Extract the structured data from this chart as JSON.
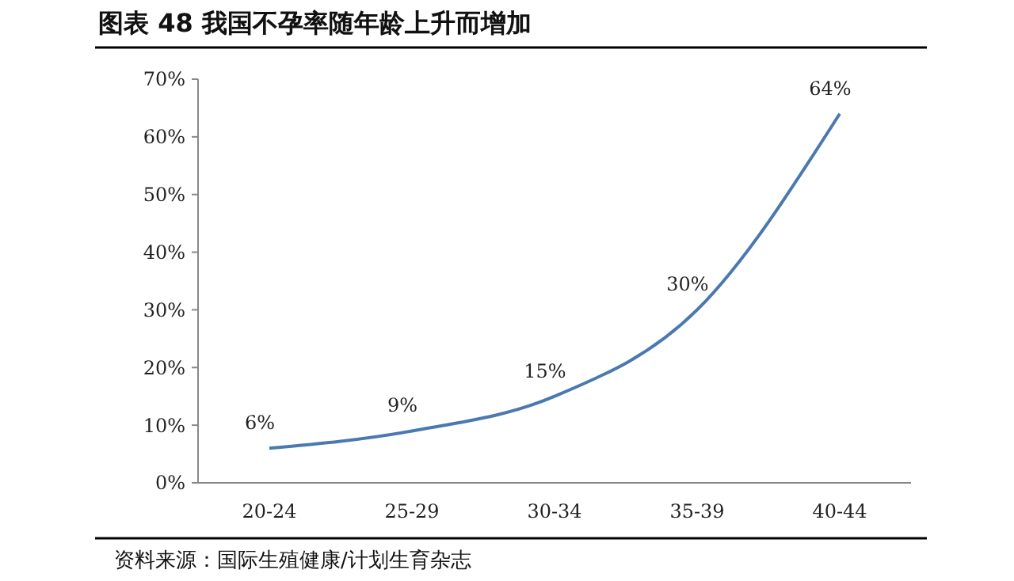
{
  "chart_data": {
    "type": "line",
    "title": "图表 48 我国不孕率随年龄上升而增加",
    "categories": [
      "20-24",
      "25-29",
      "30-34",
      "35-39",
      "40-44"
    ],
    "series": [
      {
        "color": "#4a78b0",
        "values": [
          6,
          9,
          15,
          30,
          64
        ],
        "value_labels": [
          "6%",
          "9%",
          "15%",
          "30%",
          "64%"
        ]
      }
    ],
    "ylim": [
      0,
      70
    ],
    "yticks": [
      {
        "value": 0,
        "label": "0%"
      },
      {
        "value": 10,
        "label": "10%"
      },
      {
        "value": 20,
        "label": "20%"
      },
      {
        "value": 30,
        "label": "30%"
      },
      {
        "value": 40,
        "label": "40%"
      },
      {
        "value": 50,
        "label": "50%"
      },
      {
        "value": 60,
        "label": "60%"
      },
      {
        "value": 70,
        "label": "70%"
      }
    ],
    "grid": false,
    "marker": "none",
    "line_style": "solid",
    "annotations": [
      "资料来源：国际生殖健康/计划生育杂志"
    ]
  }
}
